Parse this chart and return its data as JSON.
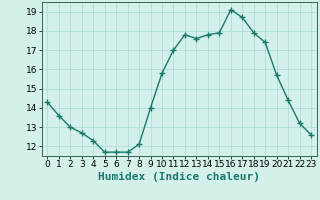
{
  "x": [
    0,
    1,
    2,
    3,
    4,
    5,
    6,
    7,
    8,
    9,
    10,
    11,
    12,
    13,
    14,
    15,
    16,
    17,
    18,
    19,
    20,
    21,
    22,
    23
  ],
  "y": [
    14.3,
    13.6,
    13.0,
    12.7,
    12.3,
    11.7,
    11.7,
    11.7,
    12.1,
    14.0,
    15.8,
    17.0,
    17.8,
    17.6,
    17.8,
    17.9,
    19.1,
    18.7,
    17.9,
    17.4,
    15.7,
    14.4,
    13.2,
    12.6
  ],
  "line_color": "#1a7a6a",
  "bg_color": "#d4f0eb",
  "grid_color": "#b0ddd8",
  "xlabel": "Humidex (Indice chaleur)",
  "ylim": [
    11.5,
    19.5
  ],
  "yticks": [
    12,
    13,
    14,
    15,
    16,
    17,
    18,
    19
  ],
  "xticks": [
    0,
    1,
    2,
    3,
    4,
    5,
    6,
    7,
    8,
    9,
    10,
    11,
    12,
    13,
    14,
    15,
    16,
    17,
    18,
    19,
    20,
    21,
    22,
    23
  ],
  "marker": "+",
  "markersize": 4,
  "linewidth": 1.0,
  "xlabel_fontsize": 8,
  "tick_fontsize": 6.5,
  "spine_color": "#336655"
}
